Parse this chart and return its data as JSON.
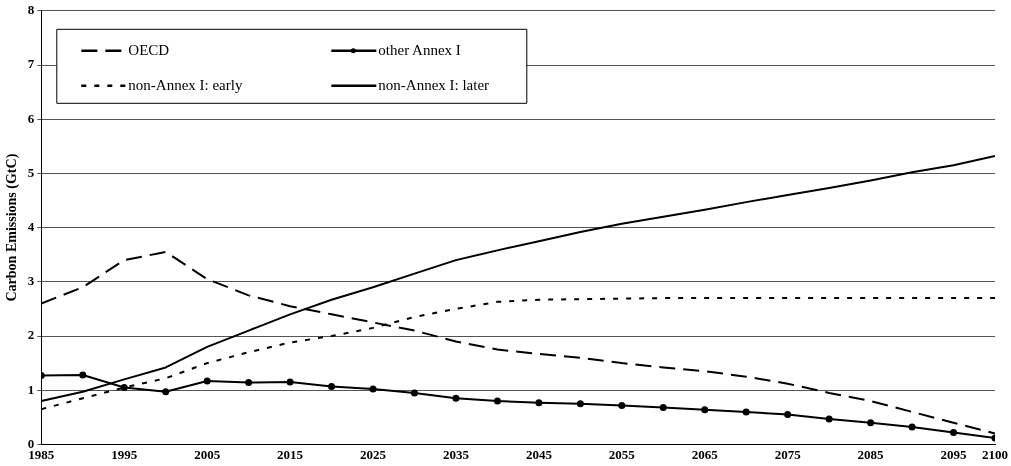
{
  "chart_data": {
    "type": "line",
    "ylabel": "Carbon Emissions (GtC)",
    "x": [
      1985,
      1990,
      1995,
      2000,
      2005,
      2010,
      2015,
      2020,
      2025,
      2030,
      2035,
      2040,
      2045,
      2050,
      2055,
      2060,
      2065,
      2070,
      2075,
      2080,
      2085,
      2090,
      2095,
      2100
    ],
    "xlim": [
      1985,
      2100
    ],
    "xticks": [
      1985,
      1995,
      2005,
      2015,
      2025,
      2035,
      2045,
      2055,
      2065,
      2075,
      2085,
      2095,
      2100
    ],
    "ylim": [
      0,
      8
    ],
    "yticks": [
      0,
      1,
      2,
      3,
      4,
      5,
      6,
      7,
      8
    ],
    "grid": "y",
    "legend": "top left",
    "series": [
      {
        "name": "OECD",
        "color": "#000000",
        "line_style": "dashed",
        "marker": "none",
        "values": [
          2.6,
          2.9,
          3.4,
          3.55,
          3.05,
          2.75,
          2.55,
          2.4,
          2.25,
          2.1,
          1.9,
          1.75,
          1.67,
          1.6,
          1.5,
          1.42,
          1.35,
          1.25,
          1.12,
          0.95,
          0.8,
          0.6,
          0.4,
          0.2
        ]
      },
      {
        "name": "other Annex I",
        "color": "#000000",
        "line_style": "solid",
        "marker": "circle",
        "values": [
          1.27,
          1.28,
          1.05,
          0.97,
          1.17,
          1.14,
          1.15,
          1.07,
          1.02,
          0.95,
          0.85,
          0.8,
          0.77,
          0.75,
          0.72,
          0.68,
          0.64,
          0.6,
          0.55,
          0.47,
          0.4,
          0.32,
          0.22,
          0.12
        ]
      },
      {
        "name": "non-Annex I: early",
        "color": "#000000",
        "line_style": "dotted",
        "marker": "none",
        "values": [
          0.65,
          0.85,
          1.05,
          1.22,
          1.5,
          1.7,
          1.88,
          2.0,
          2.15,
          2.35,
          2.5,
          2.63,
          2.67,
          2.68,
          2.69,
          2.7,
          2.7,
          2.7,
          2.7,
          2.7,
          2.7,
          2.7,
          2.7,
          2.7
        ]
      },
      {
        "name": "non-Annex I: later",
        "color": "#000000",
        "line_style": "solid",
        "marker": "none",
        "values": [
          0.8,
          0.97,
          1.2,
          1.42,
          1.8,
          2.1,
          2.4,
          2.67,
          2.9,
          3.15,
          3.4,
          3.58,
          3.75,
          3.92,
          4.07,
          4.2,
          4.33,
          4.47,
          4.6,
          4.73,
          4.87,
          5.02,
          5.15,
          5.32
        ]
      }
    ]
  }
}
